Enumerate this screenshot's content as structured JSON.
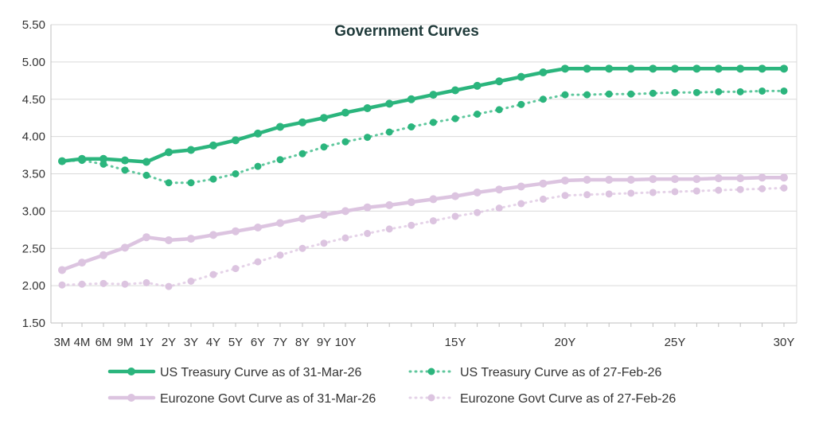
{
  "chart_data": {
    "type": "line",
    "title": "Government Curves",
    "xlabel": "",
    "ylabel": "",
    "ylim": [
      1.5,
      5.5
    ],
    "yticks": [
      "5.50",
      "5.00",
      "4.50",
      "4.00",
      "3.50",
      "3.00",
      "2.50",
      "2.00",
      "1.50"
    ],
    "grid": "horizontal",
    "legend_position": "bottom",
    "x_tenors": [
      0.25,
      0.333,
      0.5,
      0.75,
      1,
      2,
      3,
      4,
      5,
      6,
      7,
      8,
      9,
      10,
      11,
      12,
      13,
      14,
      15,
      16,
      17,
      18,
      19,
      20,
      21,
      22,
      23,
      24,
      25,
      26,
      27,
      28,
      29,
      30
    ],
    "x_tick_labels": [
      "3M",
      "4M",
      "6M",
      "9M",
      "1Y",
      "2Y",
      "3Y",
      "4Y",
      "5Y",
      "6Y",
      "7Y",
      "8Y",
      "9Y",
      "10Y",
      "15Y",
      "20Y",
      "25Y",
      "30Y"
    ],
    "x_tick_tenors": [
      0.25,
      0.333,
      0.5,
      0.75,
      1,
      2,
      3,
      4,
      5,
      6,
      7,
      8,
      9,
      10,
      15,
      20,
      25,
      30
    ],
    "series": [
      {
        "name": "US Treasury Curve as of 31-Mar-26",
        "color": "#2bb57d",
        "style": "solid",
        "values": [
          3.67,
          3.7,
          3.7,
          3.68,
          3.66,
          3.79,
          3.82,
          3.88,
          3.95,
          4.04,
          4.13,
          4.19,
          4.25,
          4.32,
          4.38,
          4.44,
          4.5,
          4.56,
          4.62,
          4.68,
          4.74,
          4.8,
          4.86,
          4.91,
          4.91,
          4.91,
          4.91,
          4.91,
          4.91,
          4.91,
          4.91,
          4.91,
          4.91,
          4.91
        ]
      },
      {
        "name": "US Treasury Curve as of 27-Feb-26",
        "color": "#2bb57d",
        "style": "dotted",
        "values": [
          3.67,
          3.68,
          3.63,
          3.55,
          3.48,
          3.38,
          3.38,
          3.43,
          3.5,
          3.6,
          3.69,
          3.77,
          3.86,
          3.93,
          3.99,
          4.06,
          4.13,
          4.19,
          4.24,
          4.3,
          4.36,
          4.43,
          4.5,
          4.56,
          4.56,
          4.57,
          4.57,
          4.58,
          4.59,
          4.59,
          4.6,
          4.6,
          4.61,
          4.61
        ]
      },
      {
        "name": "Eurozone Govt Curve as of 31-Mar-26",
        "color": "#dcc4e0",
        "style": "solid",
        "values": [
          2.21,
          2.31,
          2.41,
          2.51,
          2.65,
          2.61,
          2.63,
          2.68,
          2.73,
          2.78,
          2.84,
          2.9,
          2.95,
          3.0,
          3.05,
          3.08,
          3.12,
          3.16,
          3.2,
          3.25,
          3.29,
          3.33,
          3.37,
          3.41,
          3.42,
          3.42,
          3.42,
          3.43,
          3.43,
          3.43,
          3.44,
          3.44,
          3.45,
          3.45
        ]
      },
      {
        "name": "Eurozone Govt Curve as of 27-Feb-26",
        "color": "#dcc4e0",
        "style": "dotted",
        "values": [
          2.01,
          2.02,
          2.03,
          2.02,
          2.04,
          1.99,
          2.06,
          2.15,
          2.23,
          2.32,
          2.41,
          2.5,
          2.57,
          2.64,
          2.7,
          2.76,
          2.81,
          2.87,
          2.93,
          2.98,
          3.04,
          3.1,
          3.16,
          3.21,
          3.22,
          3.23,
          3.24,
          3.25,
          3.26,
          3.27,
          3.28,
          3.29,
          3.3,
          3.31
        ]
      }
    ]
  }
}
